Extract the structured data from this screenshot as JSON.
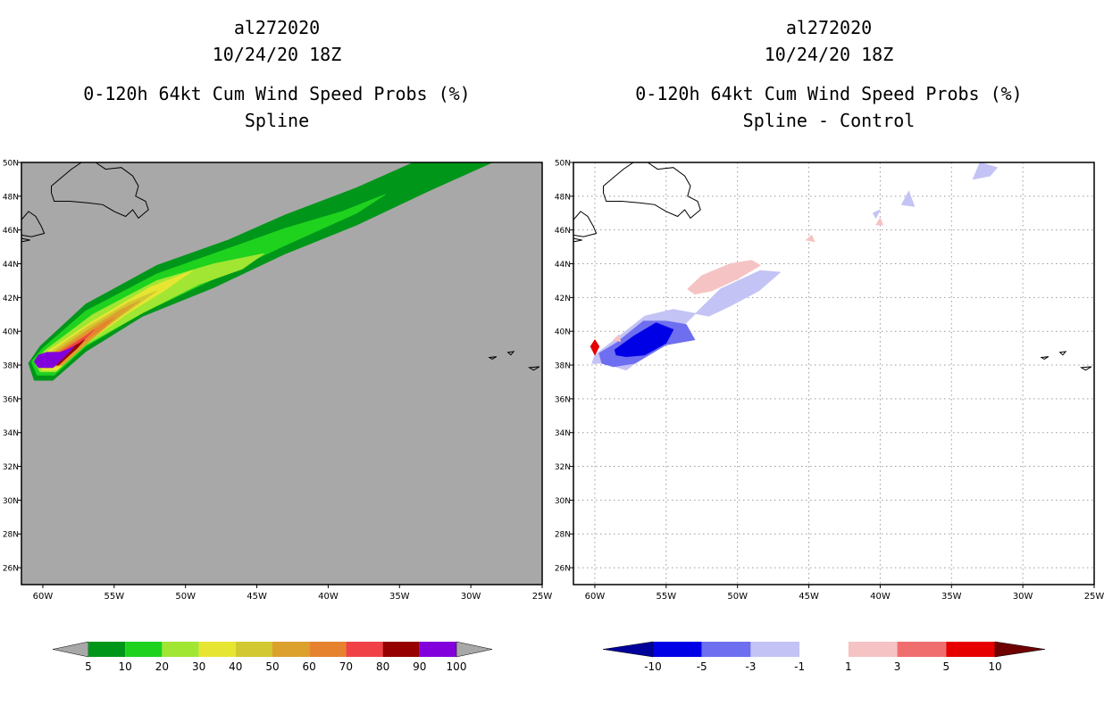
{
  "chart_data": [
    {
      "type": "heatmap",
      "id": "spline",
      "title_lines": [
        "al272020",
        "10/24/20 18Z",
        "0-120h 64kt Cum Wind Speed Probs (%)",
        "Spline"
      ],
      "xlim": [
        -61.5,
        -25
      ],
      "ylim": [
        25,
        50
      ],
      "x_ticks": [
        -60,
        -55,
        -50,
        -45,
        -40,
        -35,
        -30,
        -25
      ],
      "x_tick_labels": [
        "60W",
        "55W",
        "50W",
        "45W",
        "40W",
        "35W",
        "30W",
        "25W"
      ],
      "y_ticks": [
        26,
        28,
        30,
        32,
        34,
        36,
        38,
        40,
        42,
        44,
        46,
        48,
        50
      ],
      "y_tick_labels": [
        "26N",
        "28N",
        "30N",
        "32N",
        "34N",
        "36N",
        "38N",
        "40N",
        "42N",
        "44N",
        "46N",
        "48N",
        "50N"
      ],
      "grid": false,
      "background_color": "#a8a8a8",
      "colorbar": {
        "labels": [
          "5",
          "10",
          "20",
          "30",
          "40",
          "50",
          "60",
          "70",
          "80",
          "90",
          "100"
        ],
        "colors": [
          "#00961a",
          "#1ed21e",
          "#a0e632",
          "#e6e632",
          "#d2c832",
          "#dca02d",
          "#e6822d",
          "#f04146",
          "#960000",
          "#8200dc"
        ],
        "low_color": "#a8a8a8",
        "high_color": "#a8a8a8"
      },
      "swath_levels": [
        {
          "level": 5,
          "color": "#00961a",
          "path": [
            [
              -61,
              38.1
            ],
            [
              -60.2,
              39.1
            ],
            [
              -57,
              41.6
            ],
            [
              -52,
              43.9
            ],
            [
              -47,
              45.4
            ],
            [
              -43,
              46.9
            ],
            [
              -38,
              48.5
            ],
            [
              -34,
              50
            ],
            [
              -28.5,
              50
            ],
            [
              -33,
              48.3
            ],
            [
              -38,
              46.3
            ],
            [
              -43,
              44.6
            ],
            [
              -48,
              42.6
            ],
            [
              -53,
              40.9
            ],
            [
              -57,
              38.8
            ],
            [
              -59.3,
              37.1
            ],
            [
              -60.6,
              37.1
            ]
          ]
        },
        {
          "level": 10,
          "color": "#1ed21e",
          "path": [
            [
              -60.8,
              38.2
            ],
            [
              -60,
              39
            ],
            [
              -57,
              41.2
            ],
            [
              -52,
              43.4
            ],
            [
              -47,
              44.9
            ],
            [
              -43,
              46.1
            ],
            [
              -39,
              47.1
            ],
            [
              -36,
              48.1
            ],
            [
              -38,
              47
            ],
            [
              -43,
              45.1
            ],
            [
              -48,
              43.1
            ],
            [
              -53,
              41.1
            ],
            [
              -57,
              39.1
            ],
            [
              -59.2,
              37.4
            ],
            [
              -60.4,
              37.4
            ]
          ]
        },
        {
          "level": 20,
          "color": "#a0e632",
          "path": [
            [
              -60.6,
              38.2
            ],
            [
              -59.8,
              38.9
            ],
            [
              -56.5,
              41
            ],
            [
              -52,
              43
            ],
            [
              -48,
              44
            ],
            [
              -44.5,
              44.6
            ],
            [
              -46,
              43.7
            ],
            [
              -49,
              42.8
            ],
            [
              -53,
              41.1
            ],
            [
              -57,
              39.2
            ],
            [
              -59.1,
              37.6
            ],
            [
              -60.2,
              37.6
            ]
          ]
        },
        {
          "level": 30,
          "color": "#e6e632",
          "path": [
            [
              -60.4,
              38.2
            ],
            [
              -59.6,
              38.85
            ],
            [
              -56.5,
              40.6
            ],
            [
              -52.5,
              42.6
            ],
            [
              -49.5,
              43.6
            ],
            [
              -51.5,
              42.4
            ],
            [
              -54,
              41.1
            ],
            [
              -57,
              39.3
            ],
            [
              -59,
              37.7
            ],
            [
              -60,
              37.7
            ]
          ]
        },
        {
          "level": 40,
          "color": "#d2c832",
          "path": [
            [
              -60.2,
              38.2
            ],
            [
              -59.4,
              38.8
            ],
            [
              -57,
              40.2
            ],
            [
              -54,
              41.7
            ],
            [
              -52,
              42.4
            ],
            [
              -53.5,
              41.5
            ],
            [
              -56,
              40
            ],
            [
              -58.6,
              38
            ],
            [
              -59.8,
              37.8
            ]
          ]
        },
        {
          "level": 50,
          "color": "#dca02d",
          "path": [
            [
              -60.1,
              38.25
            ],
            [
              -59.2,
              38.75
            ],
            [
              -57,
              40
            ],
            [
              -54.5,
              41.3
            ],
            [
              -53.2,
              41.8
            ],
            [
              -54.5,
              41
            ],
            [
              -56.5,
              39.6
            ],
            [
              -58.6,
              38
            ],
            [
              -59.7,
              37.85
            ]
          ]
        },
        {
          "level": 60,
          "color": "#e6822d",
          "path": [
            [
              -60,
              38.3
            ],
            [
              -59,
              38.75
            ],
            [
              -57,
              39.8
            ],
            [
              -55.5,
              40.6
            ],
            [
              -55,
              40.8
            ],
            [
              -55.8,
              40.2
            ],
            [
              -57.5,
              39.1
            ],
            [
              -58.7,
              38.1
            ],
            [
              -59.6,
              37.9
            ]
          ]
        },
        {
          "level": 70,
          "color": "#f04146",
          "path": [
            [
              -59.9,
              38.3
            ],
            [
              -58.8,
              38.75
            ],
            [
              -57,
              39.7
            ],
            [
              -56.4,
              40.1
            ],
            [
              -57,
              39.6
            ],
            [
              -58,
              38.8
            ],
            [
              -58.8,
              38.1
            ],
            [
              -59.6,
              37.95
            ]
          ]
        },
        {
          "level": 80,
          "color": "#960000",
          "path": [
            [
              -59.8,
              38.3
            ],
            [
              -58.7,
              38.7
            ],
            [
              -57.4,
              39.3
            ],
            [
              -57.1,
              39.5
            ],
            [
              -57.6,
              39
            ],
            [
              -58.4,
              38.4
            ],
            [
              -58.9,
              38
            ],
            [
              -59.5,
              38
            ]
          ]
        },
        {
          "level": 90,
          "color": "#8200dc",
          "path": [
            [
              -60.6,
              38.2
            ],
            [
              -60.3,
              38.6
            ],
            [
              -59.7,
              38.75
            ],
            [
              -58.8,
              38.75
            ],
            [
              -58.3,
              38.9
            ],
            [
              -57.8,
              39.1
            ],
            [
              -58.6,
              38.4
            ],
            [
              -59.3,
              37.85
            ],
            [
              -60.3,
              37.85
            ]
          ]
        }
      ]
    },
    {
      "type": "heatmap",
      "id": "spline-control",
      "title_lines": [
        "al272020",
        "10/24/20 18Z",
        "0-120h 64kt Cum Wind Speed Probs (%)",
        "Spline - Control"
      ],
      "xlim": [
        -61.5,
        -25
      ],
      "ylim": [
        25,
        50
      ],
      "x_ticks": [
        -60,
        -55,
        -50,
        -45,
        -40,
        -35,
        -30,
        -25
      ],
      "x_tick_labels": [
        "60W",
        "55W",
        "50W",
        "45W",
        "40W",
        "35W",
        "30W",
        "25W"
      ],
      "y_ticks": [
        26,
        28,
        30,
        32,
        34,
        36,
        38,
        40,
        42,
        44,
        46,
        48,
        50
      ],
      "y_tick_labels": [
        "26N",
        "28N",
        "30N",
        "32N",
        "34N",
        "36N",
        "38N",
        "40N",
        "42N",
        "44N",
        "46N",
        "48N",
        "50N"
      ],
      "grid": true,
      "background_color": "#ffffff",
      "colorbar": {
        "labels": [
          "-10",
          "-5",
          "-3",
          "-1",
          "1",
          "3",
          "5",
          "10"
        ],
        "colors": [
          "#0000e6",
          "#6e6ef0",
          "#c3c3f5",
          "#ffffff",
          "#f5c3c3",
          "#f06e6e",
          "#e60000"
        ],
        "low_color": "#00009b",
        "high_color": "#6e0000"
      },
      "diff_areas": [
        {
          "value": "-3 to -1",
          "color": "#c3c3f5",
          "path": [
            [
              -60,
              38.6
            ],
            [
              -58.6,
              39.5
            ],
            [
              -56.5,
              40.9
            ],
            [
              -54.5,
              41.3
            ],
            [
              -52,
              40.9
            ],
            [
              -50.5,
              41.5
            ],
            [
              -48.5,
              42.4
            ],
            [
              -47,
              43.5
            ],
            [
              -48.4,
              43.6
            ],
            [
              -51.2,
              42.5
            ],
            [
              -53.6,
              40.5
            ],
            [
              -55.5,
              39.2
            ],
            [
              -57.8,
              37.7
            ],
            [
              -59.3,
              38.1
            ],
            [
              -60.2,
              38.1
            ]
          ]
        },
        {
          "value": "-3 to -1",
          "color": "#c3c3f5",
          "path": [
            [
              -33.5,
              49
            ],
            [
              -33,
              50
            ],
            [
              -31.8,
              49.7
            ],
            [
              -32.3,
              49.2
            ]
          ]
        },
        {
          "value": "-3 to -1",
          "color": "#c3c3f5",
          "path": [
            [
              -38.5,
              47.5
            ],
            [
              -38,
              48.3
            ],
            [
              -37.6,
              47.4
            ]
          ]
        },
        {
          "value": "-3 to -1",
          "color": "#c3c3f5",
          "path": [
            [
              -40.5,
              47
            ],
            [
              -40,
              47.2
            ],
            [
              -40.3,
              46.7
            ]
          ]
        },
        {
          "value": "-5 to -3",
          "color": "#6e6ef0",
          "path": [
            [
              -59.7,
              38.7
            ],
            [
              -58.5,
              39.3
            ],
            [
              -56.6,
              40.6
            ],
            [
              -55,
              40.6
            ],
            [
              -53.6,
              40.4
            ],
            [
              -53,
              39.5
            ],
            [
              -55,
              39.2
            ],
            [
              -57.2,
              38.1
            ],
            [
              -58.7,
              37.9
            ],
            [
              -59.5,
              38.1
            ]
          ]
        },
        {
          "value": "-10 to -5",
          "color": "#0000e6",
          "path": [
            [
              -58.6,
              38.9
            ],
            [
              -57.3,
              39.7
            ],
            [
              -55.7,
              40.5
            ],
            [
              -54.5,
              40.1
            ],
            [
              -55,
              39.3
            ],
            [
              -56.5,
              38.6
            ],
            [
              -57.8,
              38.5
            ],
            [
              -58.5,
              38.6
            ]
          ]
        },
        {
          "value": "1 to 3",
          "color": "#f5c3c3",
          "path": [
            [
              -53.5,
              42.5
            ],
            [
              -52.5,
              43.3
            ],
            [
              -50.5,
              44
            ],
            [
              -49,
              44.2
            ],
            [
              -48.4,
              43.9
            ],
            [
              -50,
              43.1
            ],
            [
              -51.8,
              42.4
            ],
            [
              -53,
              42.2
            ]
          ]
        },
        {
          "value": "1 to 3",
          "color": "#f5c3c3",
          "path": [
            [
              -45.2,
              45.4
            ],
            [
              -44.8,
              45.7
            ],
            [
              -44.6,
              45.3
            ]
          ]
        },
        {
          "value": "1 to 3",
          "color": "#f5c3c3",
          "path": [
            [
              -40.3,
              46.3
            ],
            [
              -40,
              46.7
            ],
            [
              -39.8,
              46.3
            ]
          ]
        },
        {
          "value": "1 to 3",
          "color": "#f5c3c3",
          "path": [
            [
              -58.7,
              39.5
            ],
            [
              -58.3,
              39.8
            ],
            [
              -58.2,
              39.4
            ]
          ]
        },
        {
          "value": "5 to 10",
          "color": "#e60000",
          "path": [
            [
              -60.3,
              39.1
            ],
            [
              -60,
              39.5
            ],
            [
              -59.7,
              39.1
            ],
            [
              -60,
              38.6
            ]
          ]
        }
      ]
    }
  ]
}
